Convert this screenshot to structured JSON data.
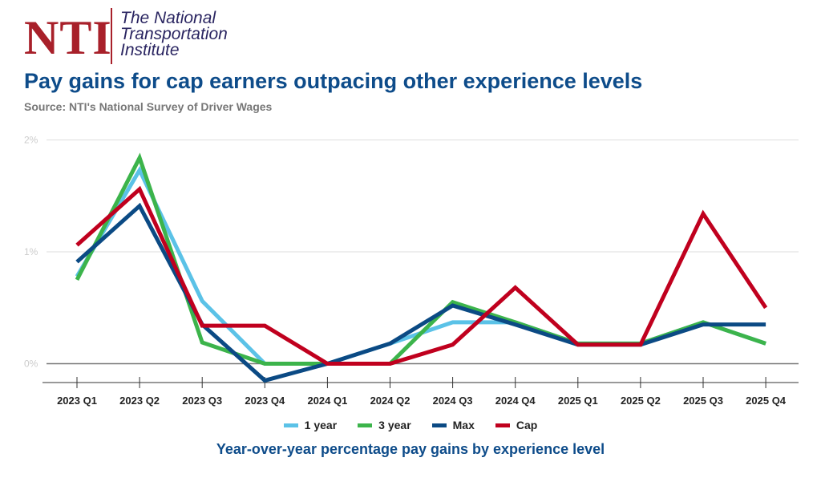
{
  "logo": {
    "mark": "NTI",
    "lines": [
      "The National",
      "Transportation",
      "Institute"
    ]
  },
  "header": {
    "title": "Pay gains for cap earners outpacing other experience levels",
    "source": "Source: NTI's National Survey of Driver Wages"
  },
  "chart_data": {
    "type": "line",
    "title": "Pay gains for cap earners outpacing other experience levels",
    "xlabel": "Year-over-year percentage pay gains by experience level",
    "ylabel": "",
    "categories": [
      "2023 Q1",
      "2023 Q2",
      "2023 Q3",
      "2023 Q4",
      "2024 Q1",
      "2024 Q2",
      "2024 Q3",
      "2024 Q4",
      "2025 Q1",
      "2025 Q2",
      "2025 Q3",
      "2025 Q4"
    ],
    "yticks": [
      {
        "v": 0,
        "label": "0%"
      },
      {
        "v": 1,
        "label": "1%"
      },
      {
        "v": 2,
        "label": "2%"
      }
    ],
    "ylim": [
      -0.2,
      2
    ],
    "grid": true,
    "legend": "bottom",
    "series": [
      {
        "name": "1 year",
        "color": "#5bc2e7",
        "values": [
          0.78,
          1.73,
          0.56,
          0,
          0,
          0.18,
          0.37,
          0.37,
          0.18,
          0.18,
          0.37,
          0.18
        ]
      },
      {
        "name": "3 year",
        "color": "#3cb44b",
        "values": [
          0.75,
          1.84,
          0.19,
          0,
          0,
          0,
          0.55,
          0.37,
          0.18,
          0.18,
          0.37,
          0.18
        ]
      },
      {
        "name": "Max",
        "color": "#0b4a84",
        "values": [
          0.91,
          1.41,
          0.35,
          -0.15,
          0,
          0.18,
          0.52,
          0.35,
          0.17,
          0.17,
          0.35,
          0.35
        ]
      },
      {
        "name": "Cap",
        "color": "#c0001e",
        "values": [
          1.06,
          1.56,
          0.34,
          0.34,
          0,
          0,
          0.17,
          0.68,
          0.17,
          0.17,
          1.34,
          0.5
        ]
      }
    ]
  }
}
